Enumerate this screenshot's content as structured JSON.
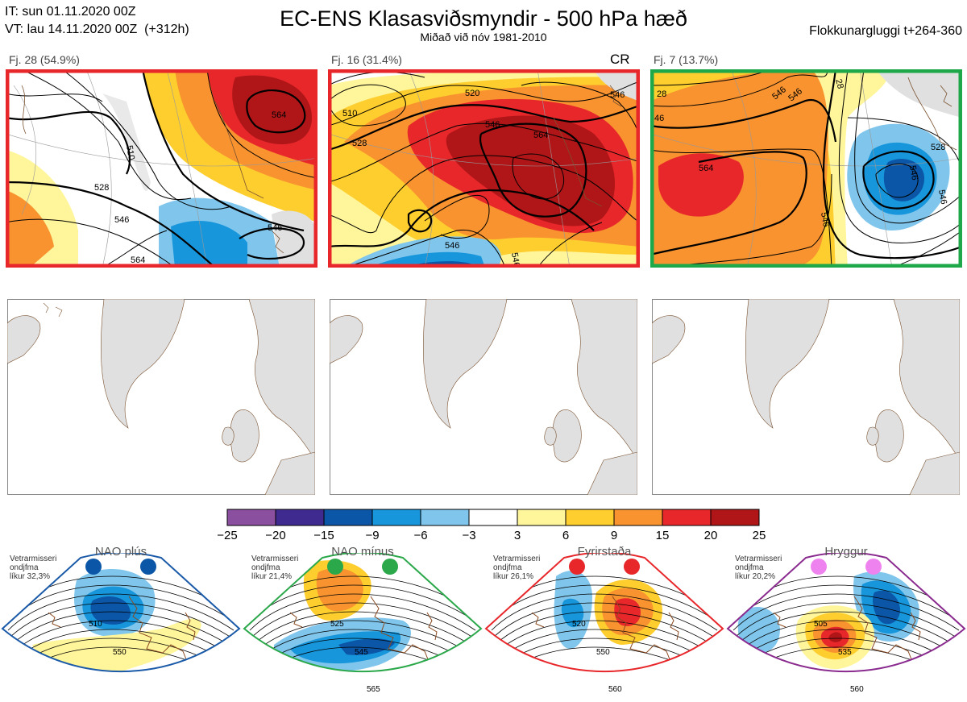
{
  "header": {
    "it": "IT: sun 01.11.2020 00Z",
    "vt": "VT: lau 14.11.2020 00Z  (+312h)",
    "title": "EC-ENS Klasasviðsmyndir - 500 hPa hæð",
    "subtitle": "Miðað við nóv 1981-2010",
    "window": "Flokkunargluggi t+264-360"
  },
  "clusters": [
    {
      "label": "Fj. 28 (54.9%)",
      "border": "#e8272b",
      "tag": "",
      "contours": [
        "510",
        "528",
        "546",
        "546",
        "564",
        "564"
      ]
    },
    {
      "label": "Fj. 16 (31.4%)",
      "border": "#e8272b",
      "tag": "CR",
      "contours": [
        "510",
        "520",
        "528",
        "546",
        "546",
        "546",
        "546",
        "564"
      ]
    },
    {
      "label": "Fj. 7 (13.7%)",
      "border": "#1ea84a",
      "tag": "",
      "contours": [
        "28",
        "28",
        "46",
        "546",
        "546",
        "564",
        "546",
        "546",
        "546",
        "528"
      ]
    }
  ],
  "colorbar": {
    "ticks": [
      "−25",
      "−20",
      "−15",
      "−9",
      "−6",
      "−3",
      "3",
      "6",
      "9",
      "15",
      "20",
      "25"
    ],
    "colors": [
      "#8b4fa0",
      "#3f2b8f",
      "#0b56a6",
      "#1796dc",
      "#80c6ec",
      "#ffffff",
      "#fff59a",
      "#fece2e",
      "#f8932f",
      "#e8272b",
      "#b01618"
    ]
  },
  "regimes": [
    {
      "name": "NAO plús",
      "text": "Vetrarmisseri\nondjfma\nlíkur 32,3%",
      "color": "#1a5aa8",
      "dot": "#0b56a6",
      "contours": [
        "510",
        "550"
      ]
    },
    {
      "name": "NAO mínus",
      "text": "Vetrarmisseri\nondjfma\nlíkur 21,4%",
      "color": "#2aa84a",
      "dot": "#2aa84a",
      "contours": [
        "525",
        "545",
        "565"
      ]
    },
    {
      "name": "Fyrirstaða",
      "text": "Vetrarmisseri\nondjfma\nlíkur 26,1%",
      "color": "#e8272b",
      "dot": "#e8272b",
      "contours": [
        "520",
        "550",
        "560"
      ]
    },
    {
      "name": "Hryggur",
      "text": "Vetrarmisseri\nondjfma\nlíkur 20,2%",
      "color": "#8a2a8f",
      "dot": "#ee82ee",
      "contours": [
        "505",
        "535",
        "560"
      ]
    }
  ]
}
